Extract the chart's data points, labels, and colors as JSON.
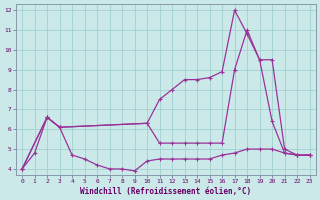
{
  "xlabel": "Windchill (Refroidissement éolien,°C)",
  "xlim": [
    0,
    23
  ],
  "ylim": [
    4,
    12
  ],
  "yticks": [
    4,
    5,
    6,
    7,
    8,
    9,
    10,
    11,
    12
  ],
  "xticks": [
    0,
    1,
    2,
    3,
    4,
    5,
    6,
    7,
    8,
    9,
    10,
    11,
    12,
    13,
    14,
    15,
    16,
    17,
    18,
    19,
    20,
    21,
    22,
    23
  ],
  "background_color": "#cce9e9",
  "grid_color": "#99cccc",
  "line_color": "#993399",
  "line1_x": [
    0,
    1,
    2,
    3,
    4,
    5,
    6,
    7,
    8,
    9,
    10,
    11,
    12,
    13,
    14,
    15,
    16,
    17,
    18,
    19,
    20,
    21,
    22,
    23
  ],
  "line1_y": [
    4.0,
    4.8,
    6.6,
    6.1,
    4.7,
    4.5,
    4.2,
    4.0,
    4.0,
    3.9,
    4.4,
    4.5,
    4.5,
    4.5,
    4.5,
    4.5,
    4.7,
    4.8,
    5.0,
    5.0,
    5.0,
    4.8,
    4.7,
    4.7
  ],
  "line2_x": [
    0,
    2,
    3,
    10,
    11,
    12,
    13,
    14,
    15,
    16,
    17,
    18,
    19,
    20,
    21,
    22,
    23
  ],
  "line2_y": [
    4.0,
    6.6,
    6.1,
    6.3,
    5.3,
    5.3,
    5.3,
    5.3,
    5.3,
    5.3,
    9.0,
    11.0,
    9.5,
    9.5,
    5.0,
    4.7,
    4.7
  ],
  "line3_x": [
    0,
    2,
    3,
    10,
    11,
    12,
    13,
    14,
    15,
    16,
    17,
    18,
    19,
    20,
    21,
    22,
    23
  ],
  "line3_y": [
    4.0,
    6.6,
    6.1,
    6.3,
    7.5,
    8.0,
    8.5,
    8.5,
    8.6,
    8.9,
    12.0,
    10.8,
    9.5,
    6.4,
    4.8,
    4.7,
    4.7
  ]
}
